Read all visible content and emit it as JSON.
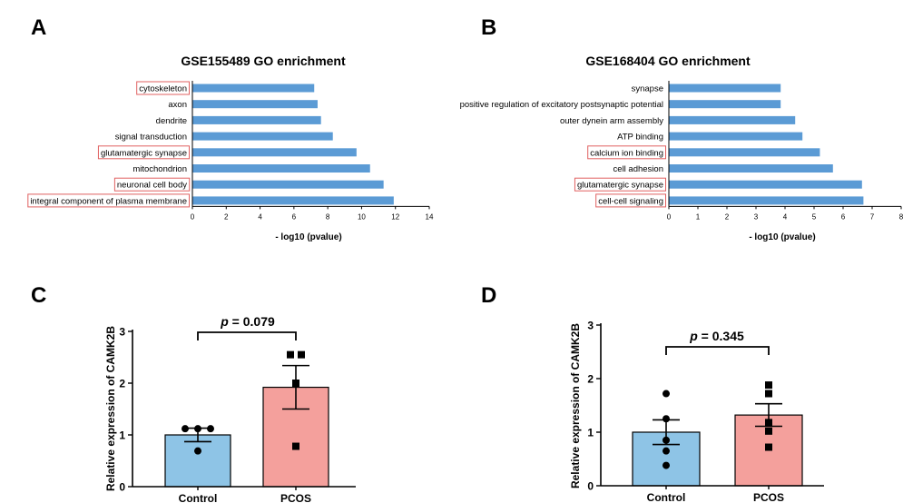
{
  "panel_letters": [
    "A",
    "B",
    "C",
    "D"
  ],
  "colors": {
    "go_bar": "#5b9bd5",
    "highlight_box": "#e06060",
    "control_bar": "#8ec4e6",
    "pcos_bar": "#f4a09c",
    "axis": "#000000"
  },
  "chart_data": [
    {
      "panel": "A",
      "type": "bar",
      "orientation": "horizontal",
      "title": "GSE155489 GO enrichment",
      "xlabel": "- log10 (pvalue)",
      "xlim": [
        0,
        14
      ],
      "xticks": [
        0,
        2,
        4,
        6,
        8,
        10,
        12,
        14
      ],
      "categories": [
        "cytoskeleton",
        "axon",
        "dendrite",
        "signal transduction",
        "glutamatergic synapse",
        "mitochondrion",
        "neuronal cell body",
        "integral component of plasma membrane"
      ],
      "values": [
        7.2,
        7.4,
        7.6,
        8.3,
        9.7,
        10.5,
        11.3,
        11.9
      ],
      "highlighted": [
        true,
        false,
        false,
        false,
        true,
        false,
        true,
        true
      ]
    },
    {
      "panel": "B",
      "type": "bar",
      "orientation": "horizontal",
      "title": "GSE168404 GO enrichment",
      "xlabel": "- log10 (pvalue)",
      "xlim": [
        0,
        8
      ],
      "xticks": [
        0,
        1,
        2,
        3,
        4,
        5,
        6,
        7,
        8
      ],
      "categories": [
        "synapse",
        "positive regulation of excitatory postsynaptic potential",
        "outer dynein arm assembly",
        "ATP binding",
        "calcium ion binding",
        "cell adhesion",
        "glutamatergic synapse",
        "cell-cell signaling"
      ],
      "values": [
        3.85,
        3.85,
        4.35,
        4.6,
        5.2,
        5.65,
        6.65,
        6.7
      ],
      "highlighted": [
        false,
        false,
        false,
        false,
        true,
        false,
        true,
        true
      ]
    },
    {
      "panel": "C",
      "type": "bar",
      "ylabel": "Relative expression of CAMK2B",
      "ylim": [
        0,
        3
      ],
      "yticks": [
        0,
        1,
        2,
        3
      ],
      "categories": [
        "Control",
        "PCOS"
      ],
      "values": [
        1.0,
        1.92
      ],
      "sem": [
        0.13,
        0.42
      ],
      "points": [
        [
          1.12,
          1.12,
          1.12,
          0.69
        ],
        [
          2.55,
          2.55,
          2.0,
          0.78
        ]
      ],
      "annotation": {
        "p_symbol": "p",
        "p_text": " = 0.079"
      }
    },
    {
      "panel": "D",
      "type": "bar",
      "ylabel": "Relative expression of CAMK2B",
      "ylim": [
        0,
        3
      ],
      "yticks": [
        0,
        1,
        2,
        3
      ],
      "categories": [
        "Control",
        "PCOS"
      ],
      "values": [
        1.0,
        1.32
      ],
      "sem": [
        0.23,
        0.21
      ],
      "points": [
        [
          1.72,
          1.25,
          0.85,
          0.65,
          0.38
        ],
        [
          1.88,
          1.72,
          1.18,
          1.02,
          0.72
        ]
      ],
      "annotation": {
        "p_symbol": "p",
        "p_text": " = 0.345"
      }
    }
  ]
}
